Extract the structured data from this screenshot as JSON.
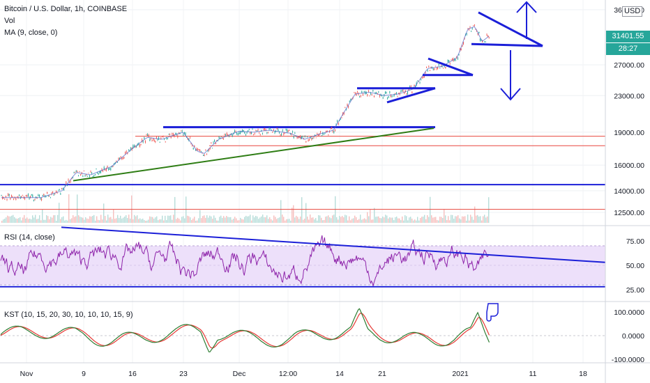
{
  "header": {
    "symbol": "Bitcoin / U.S. Dollar, 1h, COINBASE",
    "indicator_vol": "Vol",
    "indicator_ma": "MA (9, close, 0)",
    "currency": "USD"
  },
  "price_tags": {
    "last_price": "31401.55",
    "countdown": "28:27",
    "colors": {
      "last": "#26a69a",
      "countdown": "#26a69a"
    }
  },
  "panes": {
    "rsi_label": "RSI (14, close)",
    "kst_label": "KST (10, 15, 20, 30, 10, 10, 10, 15, 9)"
  },
  "colors": {
    "trendline_blue": "#1b1fd8",
    "trendline_green": "#2e7d14",
    "level_red": "#e8473f",
    "rsi_line": "#8e24aa",
    "rsi_band": "#ede0fa",
    "kst_line": "#2e7d32",
    "kst_signal": "#e53935",
    "candle_up": "#26a69a",
    "candle_down": "#ef5350"
  },
  "chart_data": [
    {
      "type": "line",
      "title": "Bitcoin / U.S. Dollar, 1h, COINBASE",
      "yscale": "log",
      "ylim": [
        11500,
        36500
      ],
      "y_ticks": [
        "36000.00",
        "27000.00",
        "23000.00",
        "19000.00",
        "16000.00",
        "14000.00",
        "12500.00"
      ],
      "x_ticks": [
        "Nov",
        "9",
        "16",
        "23",
        "Dec",
        "12:00",
        "14",
        "21",
        "2021",
        "11",
        "18"
      ],
      "x": [
        "Nov 3",
        "Nov 6",
        "Nov 8",
        "Nov 10",
        "Nov 13",
        "Nov 16",
        "Nov 18",
        "Nov 20",
        "Nov 23",
        "Nov 25",
        "Nov 26",
        "Nov 28",
        "Dec 1",
        "Dec 3",
        "Dec 5",
        "Dec 8",
        "Dec 10",
        "Dec 12",
        "Dec 14",
        "Dec 16",
        "Dec 17",
        "Dec 19",
        "Dec 21",
        "Dec 23",
        "Dec 25",
        "Dec 27",
        "Dec 29",
        "Dec 31",
        "Jan 1",
        "Jan 2",
        "Jan 3",
        "Jan 4",
        "Jan 5"
      ],
      "close": [
        13500,
        14000,
        15400,
        15200,
        15900,
        17500,
        18500,
        18300,
        19000,
        17200,
        17000,
        18300,
        19100,
        19000,
        19200,
        18900,
        18300,
        18800,
        19200,
        21800,
        23200,
        23400,
        23000,
        23200,
        23800,
        26500,
        26800,
        28000,
        29200,
        32500,
        33000,
        30500,
        31400
      ],
      "levels_price": [
        14450,
        19500,
        18600,
        17700,
        12700
      ]
    },
    {
      "type": "line",
      "title": "RSI (14, close)",
      "ylim": [
        15,
        90
      ],
      "y_ticks": [
        "75.00",
        "50.00",
        "25.00"
      ],
      "band": [
        30,
        70
      ]
    },
    {
      "type": "line",
      "title": "KST (10, 15, 20, 30, 10, 10, 10, 15, 9)",
      "ylim": [
        -120,
        120
      ],
      "y_ticks": [
        "100.0000",
        "0.0000",
        "-100.0000"
      ]
    }
  ]
}
